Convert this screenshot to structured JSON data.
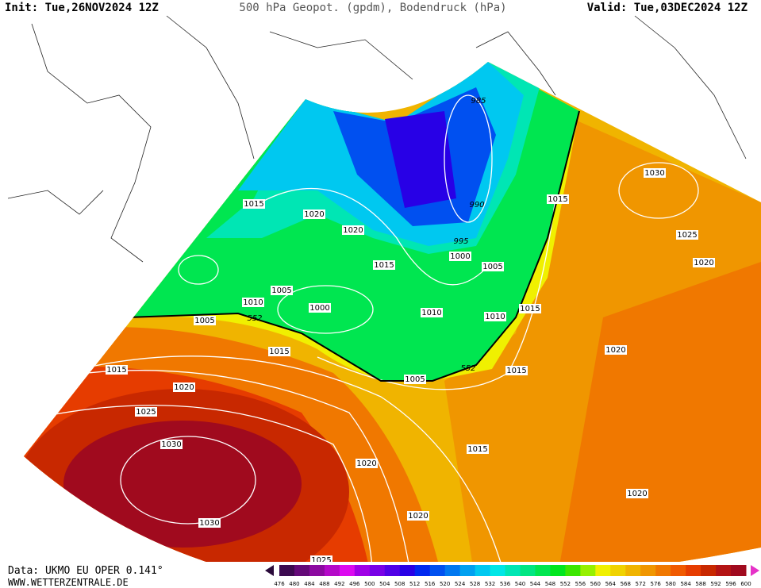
{
  "header": {
    "init": "Init: Tue,26NOV2024 12Z",
    "title": "500 hPa Geopot. (gpdm), Bodendruck (hPa)",
    "valid": "Valid: Tue,03DEC2024 12Z"
  },
  "footer": {
    "source": "Data: UKMO EU OPER 0.141°",
    "site": "WWW.WETTERZENTRALE.DE"
  },
  "contour_labels": [
    985,
    1030,
    1015,
    1020,
    1015,
    990,
    1020,
    1025,
    995,
    1000,
    1020,
    1015,
    1005,
    1005,
    1010,
    1000,
    1015,
    1010,
    1010,
    1005,
    552,
    1015,
    1020,
    1015,
    552,
    1015,
    1005,
    1020,
    1025,
    1030,
    1020,
    1015,
    1020,
    1020,
    1030,
    1025
  ],
  "colorbar": {
    "ticks": [
      476,
      480,
      484,
      488,
      492,
      496,
      500,
      504,
      508,
      512,
      516,
      520,
      524,
      528,
      532,
      536,
      540,
      544,
      548,
      552,
      556,
      560,
      564,
      568,
      572,
      576,
      580,
      584,
      588,
      592,
      596,
      600
    ],
    "colors": [
      "#3c0a50",
      "#640a78",
      "#8c0aa0",
      "#b40ac8",
      "#dc0af0",
      "#a000e6",
      "#7800e6",
      "#5000e6",
      "#2800e6",
      "#0028f0",
      "#0050f0",
      "#0078f0",
      "#00a0f0",
      "#00c8f0",
      "#00e6e6",
      "#00e6b4",
      "#00e682",
      "#00e650",
      "#00e61e",
      "#3ce600",
      "#96f000",
      "#f0f000",
      "#f0d200",
      "#f0b400",
      "#f09600",
      "#f07800",
      "#f05a00",
      "#e63c00",
      "#c82800",
      "#b41414",
      "#a00a1e"
    ]
  }
}
